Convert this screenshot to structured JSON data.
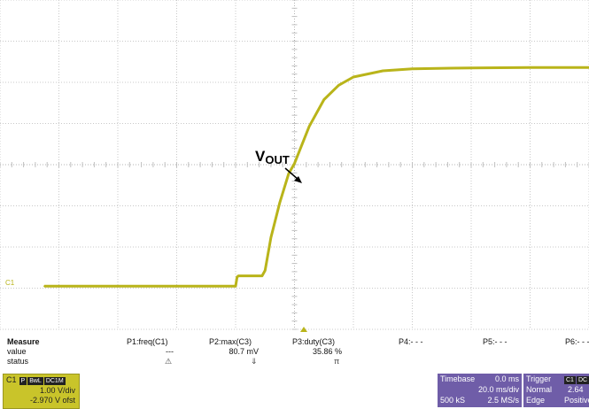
{
  "chart_data": {
    "type": "line",
    "annotation": {
      "main": "V",
      "sub": "OUT"
    },
    "channel_marker": "C1",
    "x_divisions": 10,
    "y_divisions": 8,
    "grid": true,
    "x_unit": "ms",
    "x": [
      -85,
      -70,
      -55,
      -40,
      -25,
      -20,
      -19.5,
      -19,
      -15,
      -12,
      -11,
      -10,
      -8,
      -5,
      -2,
      0,
      5,
      10,
      15,
      20,
      30,
      40,
      60,
      80,
      100,
      120
    ],
    "y": [
      0.02,
      0.02,
      0.02,
      0.02,
      0.02,
      0.02,
      0.24,
      0.27,
      0.27,
      0.27,
      0.27,
      0.4,
      1.2,
      2.05,
      2.75,
      3.0,
      3.9,
      4.55,
      4.9,
      5.1,
      5.25,
      5.3,
      5.32,
      5.33,
      5.33,
      5.33
    ]
  },
  "measure": {
    "header": "Measure",
    "row_value": "value",
    "row_status": "status",
    "params": [
      {
        "name": "P1:freq(C1)",
        "value": "---",
        "status": "⚠"
      },
      {
        "name": "P2:max(C3)",
        "value": "80.7 mV",
        "status": "⇓"
      },
      {
        "name": "P3:duty(C3)",
        "value": "35.86 %",
        "status": "π"
      },
      {
        "name": "P4:- - -",
        "value": "",
        "status": ""
      },
      {
        "name": "P5:- - -",
        "value": "",
        "status": ""
      },
      {
        "name": "P6:- - -",
        "value": "",
        "status": ""
      }
    ]
  },
  "channel_box": {
    "name": "C1",
    "tags": [
      "P",
      "BwL",
      "DC1M"
    ],
    "vdiv": "1.00 V/div",
    "offset": "-2.970 V ofst"
  },
  "timebase_box": {
    "label": "Timebase",
    "delay": "0.0 ms",
    "tdiv": "20.0 ms/div",
    "samples": "500 kS",
    "rate": "2.5 MS/s"
  },
  "trigger_box": {
    "label": "Trigger",
    "tags": [
      "C1",
      "DC"
    ],
    "mode": "Normal",
    "level": "2.64",
    "type": "Edge",
    "slope": "Positive"
  },
  "colors": {
    "trace": "#b9b41a",
    "channel_box": "#c9c42a",
    "panel_box": "#6f5da8"
  }
}
